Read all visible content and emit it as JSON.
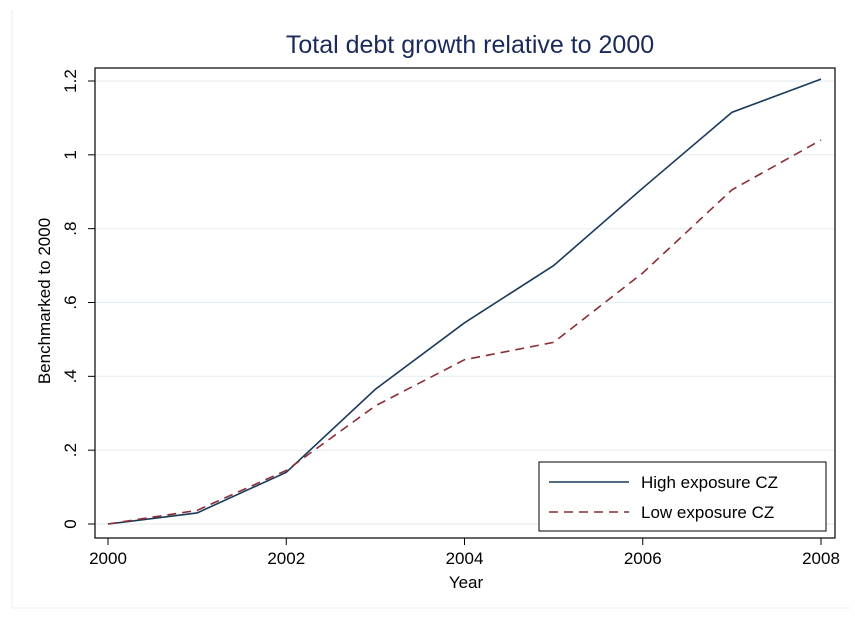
{
  "chart_data": {
    "type": "line",
    "title": "Total debt growth relative to 2000",
    "xlabel": "Year",
    "ylabel": "Benchmarked to 2000",
    "x": [
      2000,
      2001,
      2002,
      2003,
      2004,
      2005,
      2006,
      2007,
      2008
    ],
    "xlim": [
      2000,
      2008
    ],
    "ylim": [
      0,
      1.2
    ],
    "x_ticks": [
      2000,
      2002,
      2004,
      2006,
      2008
    ],
    "x_tick_labels": [
      "2000",
      "2002",
      "2004",
      "2006",
      "2008"
    ],
    "y_ticks": [
      0,
      0.2,
      0.4,
      0.6,
      0.8,
      1.0,
      1.2
    ],
    "y_tick_labels": [
      "0",
      ".2",
      ".4",
      ".6",
      ".8",
      "1",
      "1.2"
    ],
    "grid": true,
    "legend_position": "bottom-right",
    "series": [
      {
        "name": "High exposure CZ",
        "style": "solid",
        "color": "#1a3a5c",
        "values": [
          0.0,
          0.03,
          0.14,
          0.365,
          0.545,
          0.7,
          0.91,
          1.115,
          1.205
        ]
      },
      {
        "name": "Low exposure CZ",
        "style": "dashed",
        "color": "#8b2e35",
        "values": [
          0.0,
          0.037,
          0.145,
          0.32,
          0.445,
          0.492,
          0.68,
          0.905,
          1.04
        ]
      }
    ]
  }
}
